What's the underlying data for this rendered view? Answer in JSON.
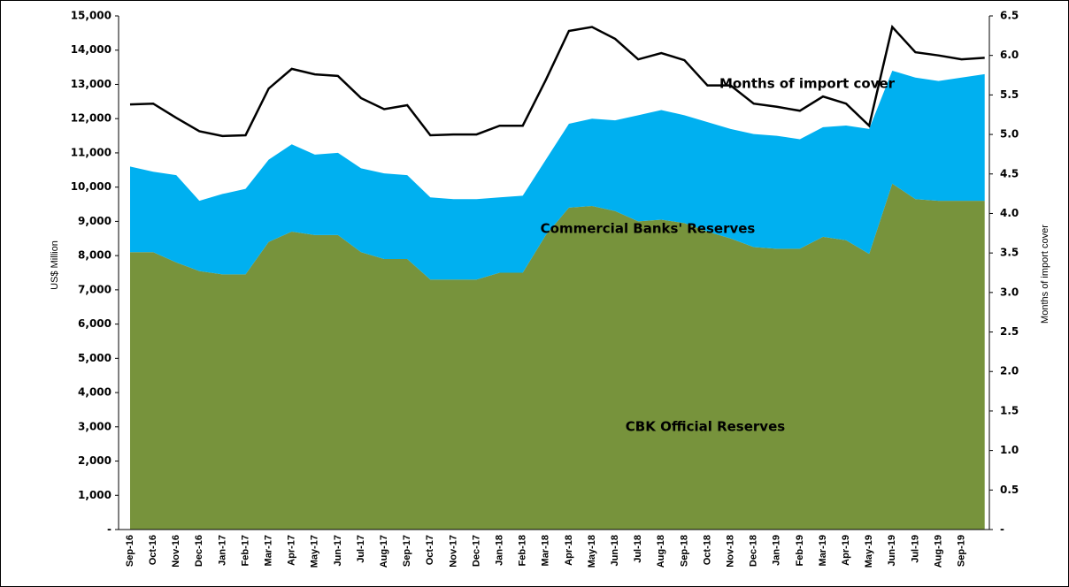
{
  "chart_data": {
    "type": "stacked-area-line",
    "y_label": "US$ Million",
    "y2_label": "Months of import cover",
    "categories": [
      "Sep-16",
      "Oct-16",
      "Nov-16",
      "Dec-16",
      "Jan-17",
      "Feb-17",
      "Mar-17",
      "Apr-17",
      "May-17",
      "Jun-17",
      "Jul-17",
      "Aug-17",
      "Sep-17",
      "Oct-17",
      "Nov-17",
      "Dec-17",
      "Jan-18",
      "Feb-18",
      "Mar-18",
      "Apr-18",
      "May-18",
      "Jun-18",
      "Jul-18",
      "Aug-18",
      "Sep-18",
      "Oct-18",
      "Nov-18",
      "Dec-18",
      "Jan-19",
      "Feb-19",
      "Mar-19",
      "Apr-19",
      "May-19",
      "Jun-19",
      "Jul-19",
      "Aug-19",
      "Sep-19",
      null
    ],
    "series": [
      {
        "name": "CBK Official Reserves",
        "color": "#77933c",
        "values": [
          8100,
          8100,
          7800,
          7550,
          7450,
          7450,
          8400,
          8700,
          8600,
          8600,
          8100,
          7900,
          7900,
          7300,
          7300,
          7300,
          7500,
          7500,
          8600,
          9400,
          9450,
          9300,
          9000,
          9050,
          8950,
          8700,
          8500,
          8250,
          8200,
          8200,
          8550,
          8450,
          8050,
          10100,
          9650,
          9600,
          9600,
          9600
        ]
      },
      {
        "name": "Commercial Banks' Reserves",
        "color": "#00b0f0",
        "values": [
          2500,
          2350,
          2550,
          2050,
          2350,
          2500,
          2400,
          2550,
          2350,
          2400,
          2450,
          2500,
          2450,
          2400,
          2350,
          2350,
          2200,
          2250,
          2200,
          2450,
          2550,
          2650,
          3100,
          3200,
          3150,
          3200,
          3200,
          3300,
          3300,
          3200,
          3200,
          3350,
          3650,
          3300,
          3550,
          3500,
          3600,
          3700
        ]
      },
      {
        "name": "Months of import cover",
        "color": "#000000",
        "axis": "y2",
        "values": [
          5.38,
          5.39,
          5.21,
          5.04,
          4.98,
          4.99,
          5.58,
          5.83,
          5.76,
          5.74,
          5.46,
          5.32,
          5.37,
          4.99,
          5.0,
          5.0,
          5.11,
          5.11,
          5.69,
          6.31,
          6.36,
          6.21,
          5.95,
          6.03,
          5.94,
          5.62,
          5.62,
          5.39,
          5.35,
          5.3,
          5.48,
          5.39,
          5.11,
          6.36,
          6.04,
          6.0,
          5.95,
          5.97
        ]
      }
    ],
    "ylim": [
      0,
      15000
    ],
    "yticks": [
      {
        "value": 0,
        "label": "-"
      },
      {
        "value": 1000,
        "label": "1,000"
      },
      {
        "value": 2000,
        "label": "2,000"
      },
      {
        "value": 3000,
        "label": "3,000"
      },
      {
        "value": 4000,
        "label": "4,000"
      },
      {
        "value": 5000,
        "label": "5,000"
      },
      {
        "value": 6000,
        "label": "6,000"
      },
      {
        "value": 7000,
        "label": "7,000"
      },
      {
        "value": 8000,
        "label": "8,000"
      },
      {
        "value": 9000,
        "label": "9,000"
      },
      {
        "value": 10000,
        "label": "10,000"
      },
      {
        "value": 11000,
        "label": "11,000"
      },
      {
        "value": 12000,
        "label": "12,000"
      },
      {
        "value": 13000,
        "label": "13,000"
      },
      {
        "value": 14000,
        "label": "14,000"
      },
      {
        "value": 15000,
        "label": "15,000"
      }
    ],
    "y2lim": [
      0,
      6.5
    ],
    "y2ticks": [
      {
        "value": 0,
        "label": "-"
      },
      0.5,
      {
        "value": 1,
        "label": "1.0"
      },
      1.5,
      {
        "value": 2,
        "label": "2.0"
      },
      2.5,
      {
        "value": 3,
        "label": "3.0"
      },
      3.5,
      {
        "value": 4,
        "label": "4.0"
      },
      4.5,
      {
        "value": 5,
        "label": "5.0"
      },
      5.5,
      {
        "value": 6,
        "label": "6.0"
      },
      6.5
    ]
  }
}
